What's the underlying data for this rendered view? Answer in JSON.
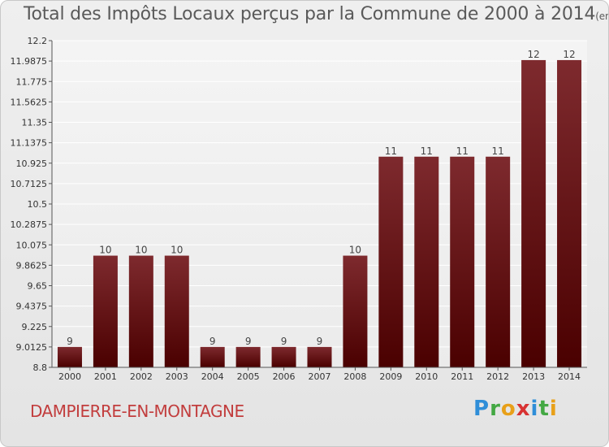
{
  "header": {
    "title": "Total des Impôts Locaux perçus par la Commune de 2000 à 2014",
    "unit": "(en milliers d'€)"
  },
  "footer": {
    "commune": "DAMPIERRE-EN-MONTAGNE",
    "logo": "Proxiti"
  },
  "colors": {
    "bar_top": "#7e2a2e",
    "bar_bottom": "#4a0000",
    "title": "#5a5a5a",
    "commune": "#c23d3d"
  },
  "chart_data": {
    "type": "bar",
    "title": "Total des Impôts Locaux perçus par la Commune de 2000 à 2014",
    "xlabel": "",
    "ylabel": "",
    "categories": [
      "2000",
      "2001",
      "2002",
      "2003",
      "2004",
      "2005",
      "2006",
      "2007",
      "2008",
      "2009",
      "2010",
      "2011",
      "2012",
      "2013",
      "2014"
    ],
    "values": [
      9,
      10,
      10,
      10,
      9,
      9,
      9,
      9,
      10,
      11,
      11,
      11,
      11,
      12,
      12
    ],
    "plot_values": [
      9.0125,
      9.9625,
      9.9625,
      9.9625,
      9.0125,
      9.0125,
      9.0125,
      9.0125,
      9.9625,
      10.9925,
      10.9925,
      10.9925,
      10.9925,
      11.9975,
      11.9975
    ],
    "data_labels": [
      "9",
      "10",
      "10",
      "10",
      "9",
      "9",
      "9",
      "9",
      "10",
      "11",
      "11",
      "11",
      "11",
      "12",
      "12"
    ],
    "yticks": [
      "12.2",
      "11.9875",
      "11.775",
      "11.5625",
      "11.35",
      "11.1375",
      "10.925",
      "10.7125",
      "10.5",
      "10.2875",
      "10.075",
      "9.8625",
      "9.65",
      "9.4375",
      "9.225",
      "9.0125",
      "8.8"
    ],
    "ylim": [
      8.8,
      12.2
    ],
    "grid": true,
    "legend": "none"
  }
}
